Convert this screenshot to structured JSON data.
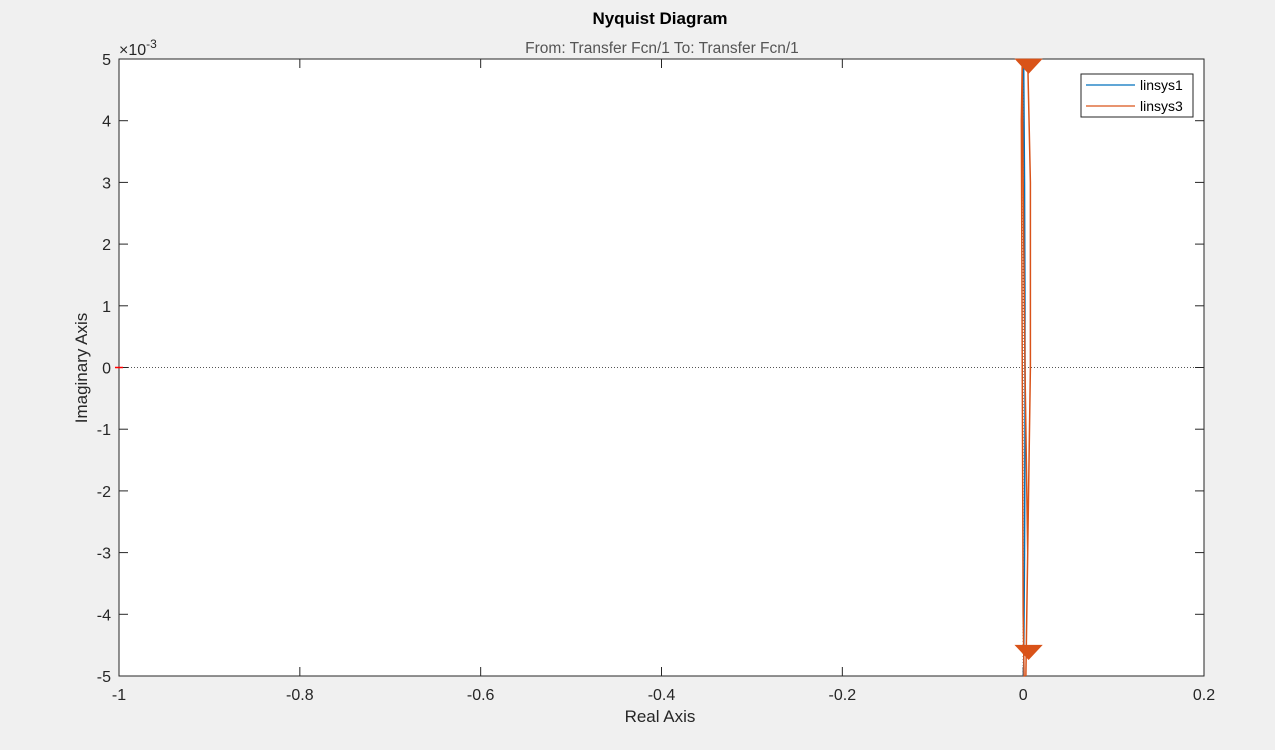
{
  "chart_data": {
    "type": "line",
    "title": "Nyquist Diagram",
    "subtitle": "From: Transfer Fcn/1  To: Transfer Fcn/1",
    "xlabel": "Real Axis",
    "ylabel": "Imaginary Axis",
    "y_exponent": "×10^-3",
    "y_exponent_base": "×10",
    "y_exponent_power": "-3",
    "xlim": [
      -1,
      0.2
    ],
    "ylim": [
      -0.005,
      0.005
    ],
    "x_ticks": [
      -1,
      -0.8,
      -0.6,
      -0.4,
      -0.2,
      0,
      0.2
    ],
    "x_tick_labels": [
      "-1",
      "-0.8",
      "-0.6",
      "-0.4",
      "-0.2",
      "0",
      "0.2"
    ],
    "y_ticks": [
      -0.005,
      -0.004,
      -0.003,
      -0.002,
      -0.001,
      0,
      0.001,
      0.002,
      0.003,
      0.004,
      0.005
    ],
    "y_tick_labels": [
      "-5",
      "-4",
      "-3",
      "-2",
      "-1",
      "0",
      "1",
      "2",
      "3",
      "4",
      "5"
    ],
    "grid": false,
    "legend_position": "top-right",
    "critical_point": {
      "x": -1,
      "y": 0,
      "color": "#ff0000"
    },
    "series": [
      {
        "name": "linsys1",
        "color": "#0072bd",
        "x": [
          0.0005,
          0.0015,
          0.002,
          0.002,
          0.0015,
          0.0005
        ],
        "y": [
          0.005,
          0.003,
          0.001,
          -0.001,
          -0.003,
          -0.005
        ]
      },
      {
        "name": "linsys3",
        "color": "#d95319",
        "x": [
          0.005,
          0.008,
          0.008,
          0.005,
          0.003,
          0.003,
          0.005,
          0.002,
          0,
          -0.001,
          -0.002,
          -0.001,
          0,
          0.001,
          0.002
        ],
        "y": [
          0.005,
          0.003,
          0.0,
          -0.003,
          -0.005,
          -0.005,
          -0.003,
          0.0,
          0.003,
          0.005,
          0.004,
          0.0,
          -0.004,
          -0.005,
          -0.005
        ],
        "arrows": [
          {
            "x": 0.006,
            "y": 0.0049
          },
          {
            "x": 0.006,
            "y": -0.0046
          }
        ]
      }
    ]
  }
}
